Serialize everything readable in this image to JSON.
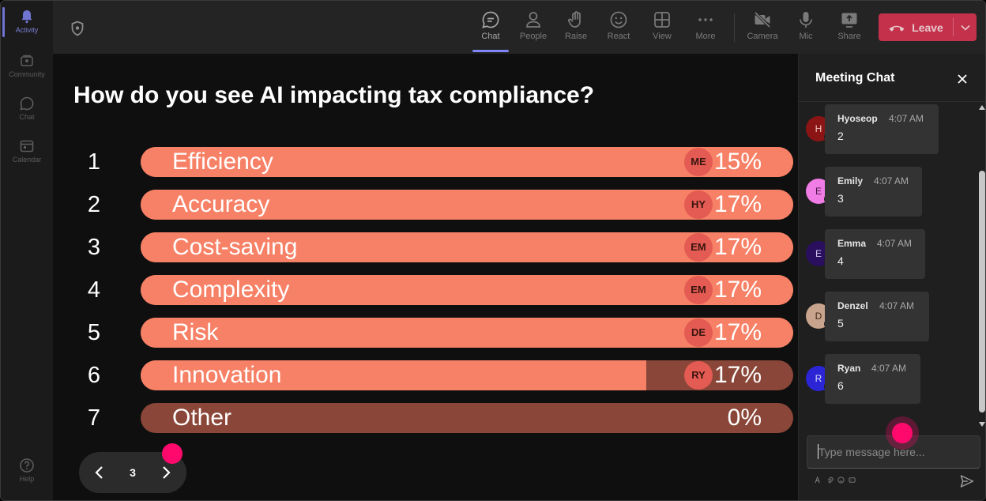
{
  "rail": {
    "items": [
      {
        "label": "Activity",
        "icon": "bell-icon",
        "active": true
      },
      {
        "label": "Community",
        "icon": "community-icon",
        "active": false
      },
      {
        "label": "Chat",
        "icon": "chat-icon",
        "active": false
      },
      {
        "label": "Calendar",
        "icon": "calendar-icon",
        "active": false
      }
    ],
    "help_label": "Help"
  },
  "toolbar": {
    "chat_label": "Chat",
    "people_label": "People",
    "raise_label": "Raise",
    "react_label": "React",
    "view_label": "View",
    "more_label": "More",
    "camera_label": "Camera",
    "mic_label": "Mic",
    "share_label": "Share",
    "leave_label": "Leave"
  },
  "poll": {
    "question": "How do you see AI impacting tax compliance?",
    "options": [
      {
        "num": "1",
        "label": "Efficiency",
        "avatar": "ME",
        "pct": "15%",
        "fill": 1.0
      },
      {
        "num": "2",
        "label": "Accuracy",
        "avatar": "HY",
        "pct": "17%",
        "fill": 1.0
      },
      {
        "num": "3",
        "label": "Cost-saving",
        "avatar": "EM",
        "pct": "17%",
        "fill": 1.0
      },
      {
        "num": "4",
        "label": "Complexity",
        "avatar": "EM",
        "pct": "17%",
        "fill": 1.0
      },
      {
        "num": "5",
        "label": "Risk",
        "avatar": "DE",
        "pct": "17%",
        "fill": 1.0
      },
      {
        "num": "6",
        "label": "Innovation",
        "avatar": "RY",
        "pct": "17%",
        "fill": 0.775
      },
      {
        "num": "7",
        "label": "Other",
        "avatar": "",
        "pct": "0%",
        "fill": 0
      }
    ],
    "page": "3"
  },
  "chat": {
    "title": "Meeting Chat",
    "messages": [
      {
        "initial": "H",
        "name": "Hyoseop",
        "time": "4:07 AM",
        "text": "2",
        "avatar_color": "#8b1515",
        "initial_color": "#f2c6c6"
      },
      {
        "initial": "E",
        "name": "Emily",
        "time": "4:07 AM",
        "text": "3",
        "avatar_color": "#f07ce6",
        "initial_color": "#4a1544"
      },
      {
        "initial": "E",
        "name": "Emma",
        "time": "4:07 AM",
        "text": "4",
        "avatar_color": "#2a0f5e",
        "initial_color": "#cfc4ef"
      },
      {
        "initial": "D",
        "name": "Denzel",
        "time": "4:07 AM",
        "text": "5",
        "avatar_color": "#c8a48c",
        "initial_color": "#3e2a1c"
      },
      {
        "initial": "R",
        "name": "Ryan",
        "time": "4:07 AM",
        "text": "6",
        "avatar_color": "#2b25d6",
        "initial_color": "#dcdcff"
      }
    ],
    "input_placeholder": "Type message here..."
  },
  "colors": {
    "bar_fill": "#f78166",
    "bar_track": "#8a4638",
    "avatar_chip": "#e35b52",
    "leave": "#c4314b",
    "cursor": "#ff0a6c",
    "accent": "#7f85f5"
  }
}
